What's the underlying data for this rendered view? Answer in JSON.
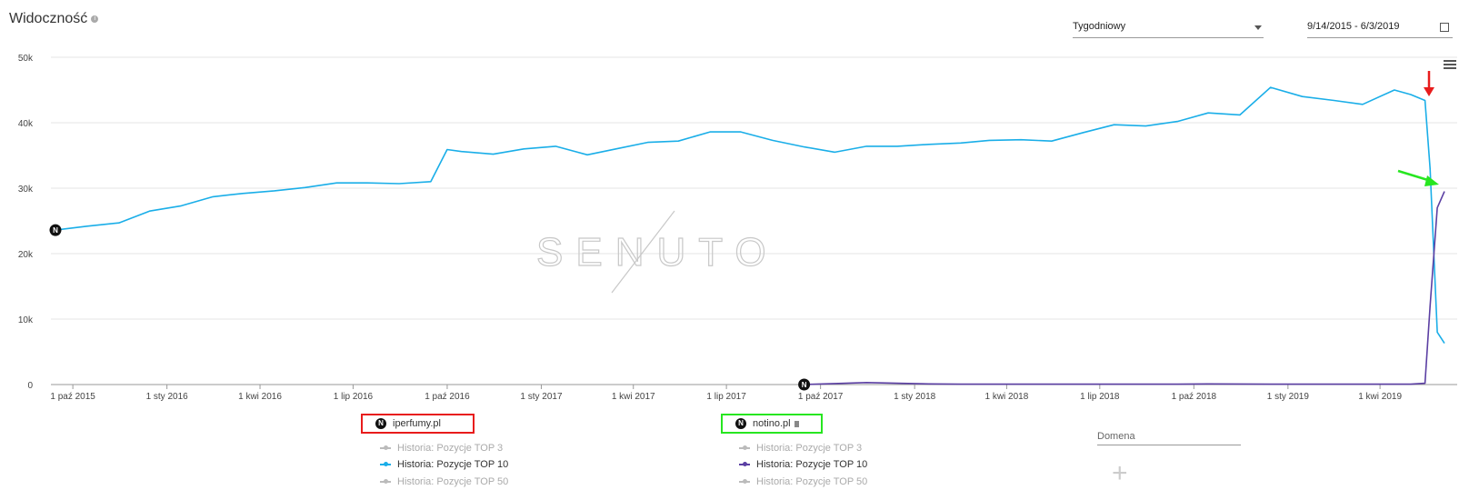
{
  "header": {
    "title": "Widoczność",
    "info_icon": "info-icon",
    "interval_select": "Tygodniowy",
    "date_range": "9/14/2015 - 6/3/2019"
  },
  "chart_data": {
    "type": "line",
    "y_ticks": [
      "50k",
      "40k",
      "30k",
      "20k",
      "10k",
      "0"
    ],
    "ylim": [
      0,
      50000
    ],
    "x_ticks": [
      "1 paź 2015",
      "1 sty 2016",
      "1 kwi 2016",
      "1 lip 2016",
      "1 paź 2016",
      "1 sty 2017",
      "1 kwi 2017",
      "1 lip 2017",
      "1 paź 2017",
      "1 sty 2018",
      "1 kwi 2018",
      "1 lip 2018",
      "1 paź 2018",
      "1 sty 2019",
      "1 kwi 2019"
    ],
    "x": [
      "2015-09-14",
      "2015-10-15",
      "2015-11-15",
      "2015-12-15",
      "2016-01-15",
      "2016-02-15",
      "2016-03-15",
      "2016-04-15",
      "2016-05-15",
      "2016-06-15",
      "2016-07-15",
      "2016-08-15",
      "2016-09-15",
      "2016-10-01",
      "2016-10-15",
      "2016-11-15",
      "2016-12-15",
      "2017-01-15",
      "2017-02-15",
      "2017-03-15",
      "2017-04-15",
      "2017-05-15",
      "2017-06-15",
      "2017-07-15",
      "2017-08-15",
      "2017-09-15",
      "2017-10-15",
      "2017-11-15",
      "2017-12-15",
      "2018-01-15",
      "2018-02-15",
      "2018-03-15",
      "2018-04-15",
      "2018-05-15",
      "2018-06-15",
      "2018-07-15",
      "2018-08-15",
      "2018-09-15",
      "2018-10-15",
      "2018-11-15",
      "2018-12-15",
      "2019-01-15",
      "2019-02-15",
      "2019-03-15",
      "2019-04-15",
      "2019-05-01",
      "2019-05-15",
      "2019-05-20",
      "2019-05-27",
      "2019-06-03"
    ],
    "series": [
      {
        "name": "Historia: Pozycje TOP 10",
        "domain": "iperfumy.pl",
        "color": "#1aaee8",
        "values": [
          23600,
          24200,
          24700,
          26500,
          27300,
          28700,
          29200,
          29600,
          30100,
          30800,
          30800,
          30700,
          31000,
          35900,
          35600,
          35200,
          36000,
          36400,
          35100,
          36000,
          37000,
          37200,
          38600,
          38600,
          37300,
          36300,
          35500,
          36400,
          36400,
          36700,
          36900,
          37300,
          37400,
          37200,
          38500,
          39700,
          39500,
          40200,
          41500,
          41200,
          45400,
          44000,
          43400,
          42800,
          45000,
          44300,
          43400,
          33000,
          8000,
          6300
        ]
      },
      {
        "name": "Historia: Pozycje TOP 10",
        "domain": "notino.pl",
        "color": "#5b3fa3",
        "values": [
          null,
          null,
          null,
          null,
          null,
          null,
          null,
          null,
          null,
          null,
          null,
          null,
          null,
          null,
          null,
          null,
          null,
          null,
          null,
          null,
          null,
          null,
          null,
          null,
          null,
          0,
          150,
          300,
          200,
          100,
          50,
          50,
          50,
          50,
          50,
          50,
          50,
          50,
          100,
          80,
          50,
          50,
          50,
          50,
          50,
          50,
          200,
          12000,
          27000,
          29500
        ]
      }
    ]
  },
  "legend": {
    "groups": [
      {
        "domain": "iperfumy.pl",
        "badge": "N",
        "items": [
          {
            "label": "Historia: Pozycje TOP 3",
            "active": false
          },
          {
            "label": "Historia: Pozycje TOP 10",
            "active": true
          },
          {
            "label": "Historia: Pozycje TOP 50",
            "active": false
          }
        ]
      },
      {
        "domain": "notino.pl",
        "badge": "N",
        "items": [
          {
            "label": "Historia: Pozycje TOP 3",
            "active": false
          },
          {
            "label": "Historia: Pozycje TOP 10",
            "active": true
          },
          {
            "label": "Historia: Pozycje TOP 50",
            "active": false
          }
        ]
      }
    ],
    "domain_input_label": "Domena",
    "add_icon": "plus-icon"
  },
  "watermark": "SENUTO",
  "annotations": {
    "red_arrow_color": "#e81c1c",
    "green_arrow_color": "#27e620",
    "iperfumy_box_color": "#e81c1c",
    "notino_box_color": "#27e620"
  }
}
